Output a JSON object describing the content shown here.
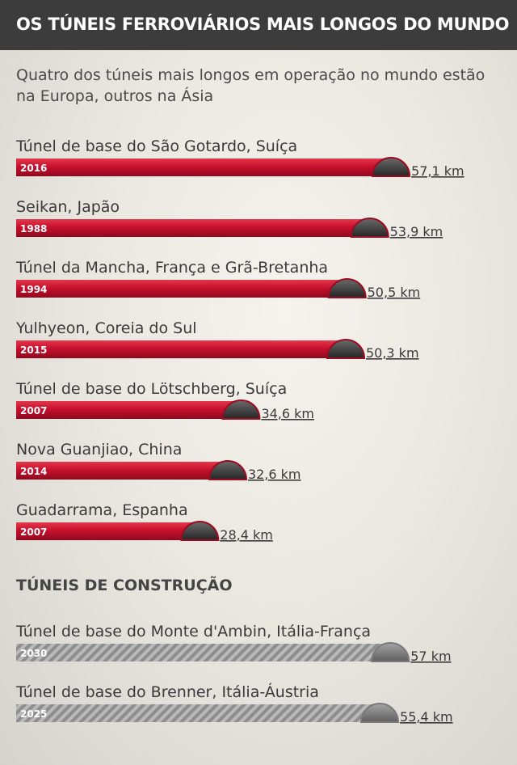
{
  "header": {
    "title": "OS TÚNEIS FERROVIÁRIOS MAIS LONGOS DO MUNDO"
  },
  "subtitle": "Quatro dos túneis mais longos em operação no mundo estão na Europa, outros na Ásia",
  "construction_title": "TÚNEIS DE CONSTRUÇÃO",
  "colors": {
    "operating": "#c8102e",
    "construction": "#8a8a8a",
    "header": "#3c3c3c",
    "cap": "#3a3a3a"
  },
  "chart_data": [
    {
      "type": "bar",
      "title": "OS TÚNEIS FERROVIÁRIOS MAIS LONGOS DO MUNDO",
      "categories": [
        "Túnel de base do São Gotardo, Suíça",
        "Seikan, Japão",
        "Túnel da Mancha, França e Grã-Bretanha",
        "Yulhyeon, Coreia do Sul",
        "Túnel de base do Lötschberg, Suíça",
        "Nova Guanjiao, China",
        "Guadarrama, Espanha"
      ],
      "values": [
        57.1,
        53.9,
        50.5,
        50.3,
        34.6,
        32.6,
        28.4
      ],
      "years": [
        "2016",
        "1988",
        "1994",
        "2015",
        "2007",
        "2014",
        "2007"
      ],
      "value_labels": [
        "57,1 km",
        "53,9 km",
        "50,5 km",
        "50,3 km",
        "34,6 km",
        "32,6 km",
        "28,4 km"
      ]
    },
    {
      "type": "bar",
      "title": "TÚNEIS DE CONSTRUÇÃO",
      "categories": [
        "Túnel de base do Monte d'Ambin, Itália-França",
        "Túnel de base do Brenner, Itália-Áustria"
      ],
      "values": [
        57,
        55.4
      ],
      "years": [
        "2030",
        "2025"
      ],
      "value_labels": [
        "57 km",
        "55,4 km"
      ]
    }
  ]
}
